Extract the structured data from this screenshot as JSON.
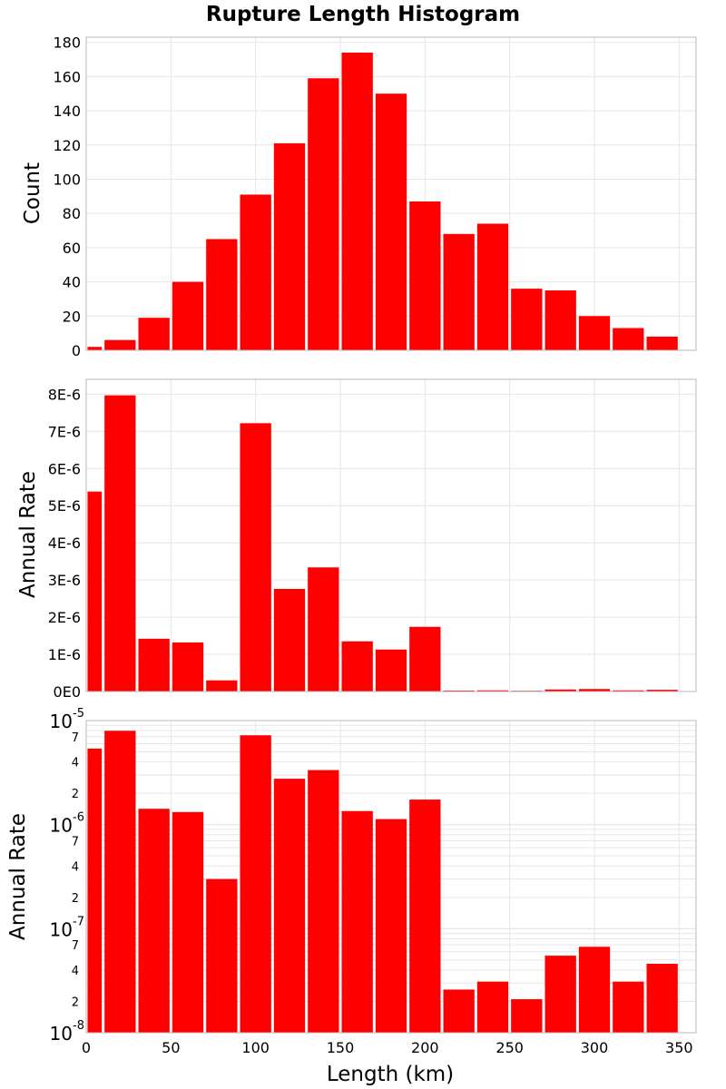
{
  "chart_data": {
    "type": "bar",
    "title": "Rupture Length Histogram",
    "xlabel": "Length (km)",
    "xlim": [
      0,
      360
    ],
    "xticks": [
      "0",
      "50",
      "100",
      "150",
      "200",
      "250",
      "300",
      "350"
    ],
    "bin_centers": [
      0,
      20,
      40,
      60,
      80,
      100,
      120,
      140,
      160,
      180,
      200,
      220,
      240,
      260,
      280,
      300,
      320,
      340,
      360
    ],
    "panels": [
      {
        "ylabel": "Count",
        "scale": "linear",
        "ylim": [
          0,
          183
        ],
        "yticks": [
          0,
          20,
          40,
          60,
          80,
          100,
          120,
          140,
          160,
          180
        ],
        "ytick_labels": [
          "0",
          "20",
          "40",
          "60",
          "80",
          "100",
          "120",
          "140",
          "160",
          "180"
        ],
        "values": [
          2,
          6,
          19,
          40,
          65,
          91,
          121,
          159,
          174,
          150,
          87,
          68,
          74,
          36,
          35,
          20,
          13,
          8
        ]
      },
      {
        "ylabel": "Annual Rate",
        "scale": "linear",
        "ylim": [
          0,
          8.4e-06
        ],
        "yticks": [
          0,
          1e-06,
          2e-06,
          3e-06,
          4e-06,
          5e-06,
          6e-06,
          7e-06,
          8e-06
        ],
        "ytick_labels": [
          "0E0",
          "1E-6",
          "2E-6",
          "3E-6",
          "4E-6",
          "5E-6",
          "6E-6",
          "7E-6",
          "8E-6"
        ],
        "values": [
          5.38e-06,
          7.97e-06,
          1.42e-06,
          1.32e-06,
          3e-07,
          7.22e-06,
          2.76e-06,
          3.34e-06,
          1.35e-06,
          1.13e-06,
          1.74e-06,
          2.6e-08,
          3.1e-08,
          2.1e-08,
          5.5e-08,
          6.7e-08,
          3.1e-08,
          4.6e-08
        ]
      },
      {
        "ylabel": "Annual Rate",
        "scale": "log",
        "ylim": [
          1e-08,
          1e-05
        ],
        "major_ticks": [
          {
            "value": 1e-05,
            "base": "10",
            "exp": "-5"
          },
          {
            "value": 1e-06,
            "base": "10",
            "exp": "-6"
          },
          {
            "value": 1e-07,
            "base": "10",
            "exp": "-7"
          },
          {
            "value": 1e-08,
            "base": "10",
            "exp": "-8"
          }
        ],
        "minor_labels": [
          "2",
          "4",
          "7"
        ],
        "values": [
          5.38e-06,
          7.97e-06,
          1.42e-06,
          1.32e-06,
          3e-07,
          7.22e-06,
          2.76e-06,
          3.34e-06,
          1.35e-06,
          1.13e-06,
          1.74e-06,
          2.6e-08,
          3.1e-08,
          2.1e-08,
          5.5e-08,
          6.7e-08,
          3.1e-08,
          4.6e-08
        ]
      }
    ],
    "bar_color": "#ff0000",
    "grid": true
  }
}
